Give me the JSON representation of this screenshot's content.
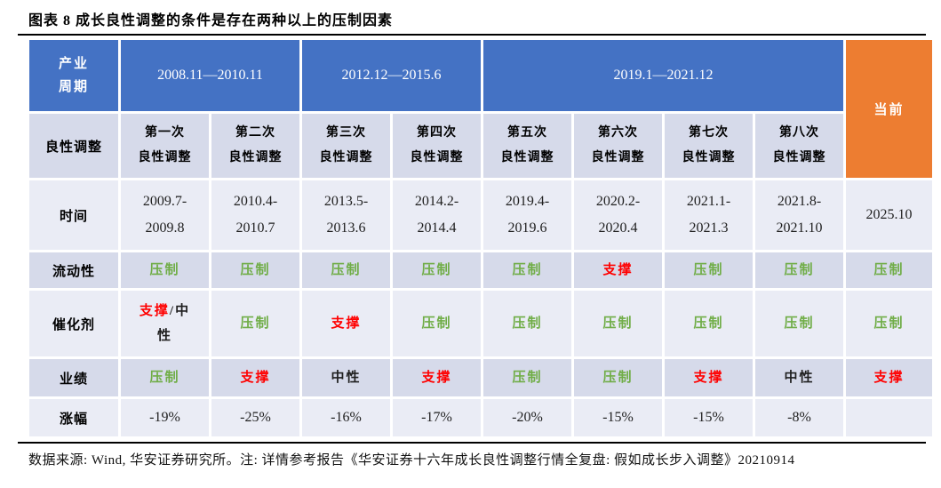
{
  "figure": {
    "title": "图表 8 成长良性调整的条件是存在两种以上的压制因素",
    "footnote": "数据来源: Wind, 华安证券研究所。注: 详情参考报告《华安证券十六年成长良性调整行情全复盘: 假如成长步入调整》20210914"
  },
  "colors": {
    "header_blue": "#4472C4",
    "current_orange": "#ED7D31",
    "band_dark": "#D6DAEA",
    "band_light": "#EAECF5",
    "suppress_green": "#70AD47",
    "support_red": "#FF0000",
    "text_black": "#1F1F1F",
    "rule_black": "#000000"
  },
  "table": {
    "corner": {
      "lines": [
        "产业",
        "周期"
      ]
    },
    "periods": [
      {
        "label": "2008.11—2010.11",
        "colspan": 2
      },
      {
        "label": "2012.12—2015.6",
        "colspan": 2
      },
      {
        "label": "2019.1—2021.12",
        "colspan": 4
      }
    ],
    "current_label": "当前",
    "row2_label": "良性调整",
    "episodes": [
      {
        "lines": [
          "第一次",
          "良性调整"
        ]
      },
      {
        "lines": [
          "第二次",
          "良性调整"
        ]
      },
      {
        "lines": [
          "第三次",
          "良性调整"
        ]
      },
      {
        "lines": [
          "第四次",
          "良性调整"
        ]
      },
      {
        "lines": [
          "第五次",
          "良性调整"
        ]
      },
      {
        "lines": [
          "第六次",
          "良性调整"
        ]
      },
      {
        "lines": [
          "第七次",
          "良性调整"
        ]
      },
      {
        "lines": [
          "第八次",
          "良性调整"
        ]
      }
    ],
    "rows": [
      {
        "key": "time",
        "label": "时间",
        "band": "light",
        "cells": [
          {
            "kind": "num",
            "lines": [
              [
                {
                  "t": "2009.7-",
                  "c": "k"
                }
              ],
              [
                {
                  "t": "2009.8",
                  "c": "k"
                }
              ]
            ]
          },
          {
            "kind": "num",
            "lines": [
              [
                {
                  "t": "2010.4-",
                  "c": "k"
                }
              ],
              [
                {
                  "t": "2010.7",
                  "c": "k"
                }
              ]
            ]
          },
          {
            "kind": "num",
            "lines": [
              [
                {
                  "t": "2013.5-",
                  "c": "k"
                }
              ],
              [
                {
                  "t": "2013.6",
                  "c": "k"
                }
              ]
            ]
          },
          {
            "kind": "num",
            "lines": [
              [
                {
                  "t": "2014.2-",
                  "c": "k"
                }
              ],
              [
                {
                  "t": "2014.4",
                  "c": "k"
                }
              ]
            ]
          },
          {
            "kind": "num",
            "lines": [
              [
                {
                  "t": "2019.4-",
                  "c": "k"
                }
              ],
              [
                {
                  "t": "2019.6",
                  "c": "k"
                }
              ]
            ]
          },
          {
            "kind": "num",
            "lines": [
              [
                {
                  "t": "2020.2-",
                  "c": "k"
                }
              ],
              [
                {
                  "t": "2020.4",
                  "c": "k"
                }
              ]
            ]
          },
          {
            "kind": "num",
            "lines": [
              [
                {
                  "t": "2021.1-",
                  "c": "k"
                }
              ],
              [
                {
                  "t": "2021.3",
                  "c": "k"
                }
              ]
            ]
          },
          {
            "kind": "num",
            "lines": [
              [
                {
                  "t": "2021.8-",
                  "c": "k"
                }
              ],
              [
                {
                  "t": "2021.10",
                  "c": "k"
                }
              ]
            ]
          }
        ],
        "current": {
          "kind": "num",
          "lines": [
            [
              {
                "t": "2025.10",
                "c": "k"
              }
            ]
          ]
        }
      },
      {
        "key": "liquidity",
        "label": "流动性",
        "band": "dark",
        "cells": [
          {
            "kind": "status",
            "lines": [
              [
                {
                  "t": "压制",
                  "c": "g"
                }
              ]
            ]
          },
          {
            "kind": "status",
            "lines": [
              [
                {
                  "t": "压制",
                  "c": "g"
                }
              ]
            ]
          },
          {
            "kind": "status",
            "lines": [
              [
                {
                  "t": "压制",
                  "c": "g"
                }
              ]
            ]
          },
          {
            "kind": "status",
            "lines": [
              [
                {
                  "t": "压制",
                  "c": "g"
                }
              ]
            ]
          },
          {
            "kind": "status",
            "lines": [
              [
                {
                  "t": "压制",
                  "c": "g"
                }
              ]
            ]
          },
          {
            "kind": "status",
            "lines": [
              [
                {
                  "t": "支撑",
                  "c": "r"
                }
              ]
            ]
          },
          {
            "kind": "status",
            "lines": [
              [
                {
                  "t": "压制",
                  "c": "g"
                }
              ]
            ]
          },
          {
            "kind": "status",
            "lines": [
              [
                {
                  "t": "压制",
                  "c": "g"
                }
              ]
            ]
          }
        ],
        "current": {
          "kind": "status",
          "lines": [
            [
              {
                "t": "压制",
                "c": "g"
              }
            ]
          ]
        }
      },
      {
        "key": "catalyst",
        "label": "催化剂",
        "band": "light",
        "cells": [
          {
            "kind": "status",
            "lines": [
              [
                {
                  "t": "支撑",
                  "c": "r"
                },
                {
                  "t": "/中",
                  "c": "k"
                }
              ],
              [
                {
                  "t": "性",
                  "c": "k"
                }
              ]
            ]
          },
          {
            "kind": "status",
            "lines": [
              [
                {
                  "t": "压制",
                  "c": "g"
                }
              ]
            ]
          },
          {
            "kind": "status",
            "lines": [
              [
                {
                  "t": "支撑",
                  "c": "r"
                }
              ]
            ]
          },
          {
            "kind": "status",
            "lines": [
              [
                {
                  "t": "压制",
                  "c": "g"
                }
              ]
            ]
          },
          {
            "kind": "status",
            "lines": [
              [
                {
                  "t": "压制",
                  "c": "g"
                }
              ]
            ]
          },
          {
            "kind": "status",
            "lines": [
              [
                {
                  "t": "压制",
                  "c": "g"
                }
              ]
            ]
          },
          {
            "kind": "status",
            "lines": [
              [
                {
                  "t": "压制",
                  "c": "g"
                }
              ]
            ]
          },
          {
            "kind": "status",
            "lines": [
              [
                {
                  "t": "压制",
                  "c": "g"
                }
              ]
            ]
          }
        ],
        "current": {
          "kind": "status",
          "lines": [
            [
              {
                "t": "压制",
                "c": "g"
              }
            ]
          ]
        }
      },
      {
        "key": "earnings",
        "label": "业绩",
        "band": "dark",
        "cells": [
          {
            "kind": "status",
            "lines": [
              [
                {
                  "t": "压制",
                  "c": "g"
                }
              ]
            ]
          },
          {
            "kind": "status",
            "lines": [
              [
                {
                  "t": "支撑",
                  "c": "r"
                }
              ]
            ]
          },
          {
            "kind": "status",
            "lines": [
              [
                {
                  "t": "中性",
                  "c": "k"
                }
              ]
            ]
          },
          {
            "kind": "status",
            "lines": [
              [
                {
                  "t": "支撑",
                  "c": "r"
                }
              ]
            ]
          },
          {
            "kind": "status",
            "lines": [
              [
                {
                  "t": "压制",
                  "c": "g"
                }
              ]
            ]
          },
          {
            "kind": "status",
            "lines": [
              [
                {
                  "t": "压制",
                  "c": "g"
                }
              ]
            ]
          },
          {
            "kind": "status",
            "lines": [
              [
                {
                  "t": "支撑",
                  "c": "r"
                }
              ]
            ]
          },
          {
            "kind": "status",
            "lines": [
              [
                {
                  "t": "中性",
                  "c": "k"
                }
              ]
            ]
          }
        ],
        "current": {
          "kind": "status",
          "lines": [
            [
              {
                "t": "支撑",
                "c": "r"
              }
            ]
          ]
        }
      },
      {
        "key": "change",
        "label": "涨幅",
        "band": "light",
        "cells": [
          {
            "kind": "num",
            "lines": [
              [
                {
                  "t": "-19%",
                  "c": "k"
                }
              ]
            ]
          },
          {
            "kind": "num",
            "lines": [
              [
                {
                  "t": "-25%",
                  "c": "k"
                }
              ]
            ]
          },
          {
            "kind": "num",
            "lines": [
              [
                {
                  "t": "-16%",
                  "c": "k"
                }
              ]
            ]
          },
          {
            "kind": "num",
            "lines": [
              [
                {
                  "t": "-17%",
                  "c": "k"
                }
              ]
            ]
          },
          {
            "kind": "num",
            "lines": [
              [
                {
                  "t": "-20%",
                  "c": "k"
                }
              ]
            ]
          },
          {
            "kind": "num",
            "lines": [
              [
                {
                  "t": "-15%",
                  "c": "k"
                }
              ]
            ]
          },
          {
            "kind": "num",
            "lines": [
              [
                {
                  "t": "-15%",
                  "c": "k"
                }
              ]
            ]
          },
          {
            "kind": "num",
            "lines": [
              [
                {
                  "t": "-8%",
                  "c": "k"
                }
              ]
            ]
          }
        ],
        "current": {
          "kind": "num",
          "lines": []
        }
      }
    ]
  }
}
